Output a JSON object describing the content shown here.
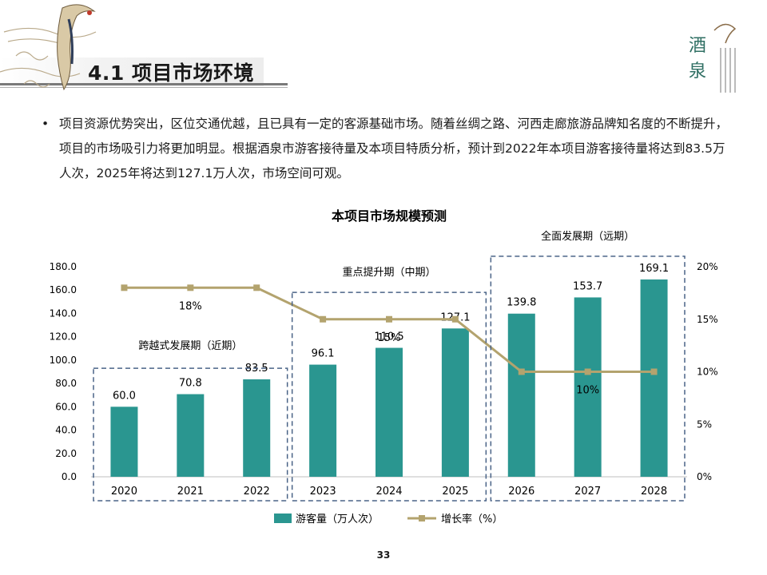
{
  "page": {
    "title": "4.1 项目市场环境",
    "page_number": "33"
  },
  "bullet": {
    "symbol": "•",
    "text": "项目资源优势突出，区位交通优越，且已具有一定的客源基础市场。随着丝绸之路、河西走廊旅游品牌知名度的不断提升，项目的市场吸引力将更加明显。根据酒泉市游客接待量及本项目特质分析，预计到2022年本项目游客接待量将达到83.5万人次，2025年将达到127.1万人次，市场空间可观。"
  },
  "logo": {
    "text": "酒泉",
    "icon": "jiuquan-culture-logo"
  },
  "colors": {
    "bar": "#2a9690",
    "line": "#b3a36e",
    "phase_box": "#4a6387"
  },
  "chart_data": {
    "type": "bar+line",
    "title": "本项目市场规模预测",
    "categories": [
      "2020",
      "2021",
      "2022",
      "2023",
      "2024",
      "2025",
      "2026",
      "2027",
      "2028"
    ],
    "series": [
      {
        "name": "游客量（万人次）",
        "type": "bar",
        "axis": "left",
        "values": [
          60.0,
          70.8,
          83.5,
          96.1,
          110.5,
          127.1,
          139.8,
          153.7,
          169.1
        ],
        "labels": [
          "60.0",
          "70.8",
          "83.5",
          "96.1",
          "110.5",
          "127.1",
          "139.8",
          "153.7",
          "169.1"
        ]
      },
      {
        "name": "增长率（%）",
        "type": "line",
        "axis": "right",
        "values": [
          18,
          18,
          18,
          15,
          15,
          15,
          10,
          10,
          10
        ]
      }
    ],
    "left_axis": {
      "min": 0,
      "max": 180,
      "step": 20,
      "ticks": [
        "0.0",
        "20.0",
        "40.0",
        "60.0",
        "80.0",
        "100.0",
        "120.0",
        "140.0",
        "160.0",
        "180.0"
      ]
    },
    "right_axis": {
      "min": 0,
      "max": 20,
      "step": 5,
      "ticks": [
        "0%",
        "5%",
        "10%",
        "15%",
        "20%"
      ]
    },
    "line_labels": [
      {
        "category": "2021",
        "text": "18%"
      },
      {
        "category": "2024",
        "text": "15%"
      },
      {
        "category": "2027",
        "text": "10%"
      }
    ],
    "phases": [
      {
        "label": "跨越式发展期（近期）",
        "categories": [
          "2020",
          "2021",
          "2022"
        ]
      },
      {
        "label": "重点提升期（中期）",
        "categories": [
          "2023",
          "2024",
          "2025"
        ]
      },
      {
        "label": "全面发展期（远期）",
        "categories": [
          "2026",
          "2027",
          "2028"
        ]
      }
    ],
    "legend_position": "bottom"
  }
}
